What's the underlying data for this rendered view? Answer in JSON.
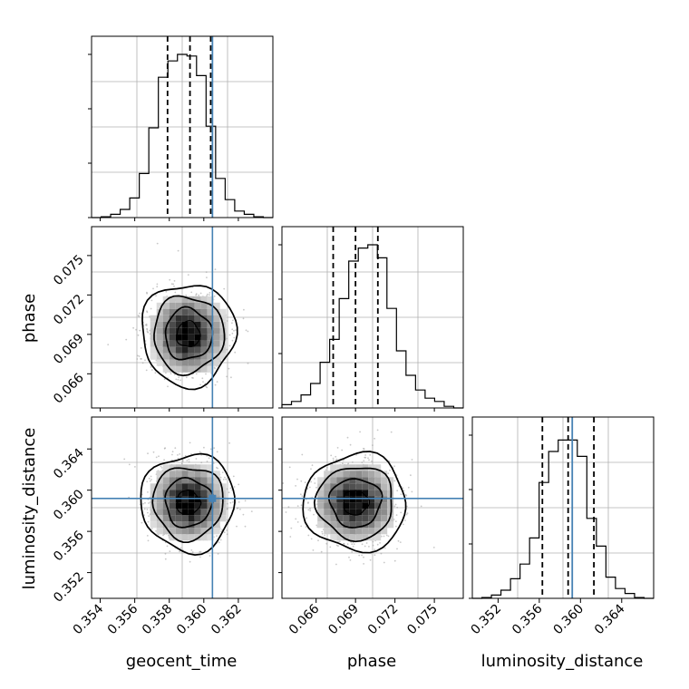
{
  "chart_data": {
    "type": "corner",
    "parameters": [
      {
        "name": "geocent_time",
        "label": "geocent_time",
        "range": [
          0.3535,
          0.364
        ],
        "ticks": [
          "0.354",
          "0.356",
          "0.358",
          "0.360",
          "0.362"
        ],
        "truth": 0.3605,
        "quantiles": [
          0.3579,
          0.3592,
          0.3604
        ]
      },
      {
        "name": "phase",
        "label": "phase",
        "range": [
          0.0634,
          0.0772
        ],
        "ticks": [
          "0.066",
          "0.069",
          "0.072",
          "0.075"
        ],
        "truth": null,
        "quantiles": [
          0.0673,
          0.069,
          0.0707
        ]
      },
      {
        "name": "luminosity_distance",
        "label": "luminosity_distance",
        "range": [
          0.3495,
          0.3671
        ],
        "ticks": [
          "0.352",
          "0.356",
          "0.360",
          "0.364"
        ],
        "truth": 0.3592,
        "quantiles": [
          0.3563,
          0.3588,
          0.3613
        ]
      }
    ],
    "histograms": [
      {
        "param": "geocent_time",
        "counts": [
          0.0,
          0.005,
          0.02,
          0.05,
          0.12,
          0.27,
          0.55,
          0.86,
          0.96,
          1.0,
          0.99,
          0.87,
          0.56,
          0.24,
          0.11,
          0.04,
          0.02,
          0.005,
          0.0
        ]
      },
      {
        "param": "phase",
        "counts": [
          0.02,
          0.04,
          0.08,
          0.15,
          0.28,
          0.42,
          0.67,
          0.9,
          0.98,
          1.0,
          0.92,
          0.61,
          0.35,
          0.2,
          0.11,
          0.06,
          0.04,
          0.01,
          0.0
        ]
      },
      {
        "param": "luminosity_distance",
        "counts": [
          0.0,
          0.005,
          0.02,
          0.05,
          0.12,
          0.21,
          0.37,
          0.71,
          0.9,
          0.97,
          0.97,
          0.87,
          0.49,
          0.32,
          0.13,
          0.06,
          0.03,
          0.005,
          0.0
        ]
      }
    ],
    "pairs": [
      {
        "x": "geocent_time",
        "y": "phase",
        "center": [
          0.3591,
          0.069
        ],
        "sigma": [
          0.00115,
          0.00165
        ],
        "truth_x": 0.3605,
        "truth_y": null
      },
      {
        "x": "geocent_time",
        "y": "luminosity_distance",
        "center": [
          0.3591,
          0.3588
        ],
        "sigma": [
          0.00115,
          0.002
        ],
        "truth_x": 0.3605,
        "truth_y": 0.3592
      },
      {
        "x": "phase",
        "y": "luminosity_distance",
        "center": [
          0.069,
          0.3588
        ],
        "sigma": [
          0.00165,
          0.002
        ],
        "truth_x": null,
        "truth_y": 0.3592
      }
    ],
    "contour_levels_sigma": [
      0.5,
      1.0,
      1.5,
      2.0
    ],
    "truth_color": "#4682b4",
    "grid": true
  }
}
